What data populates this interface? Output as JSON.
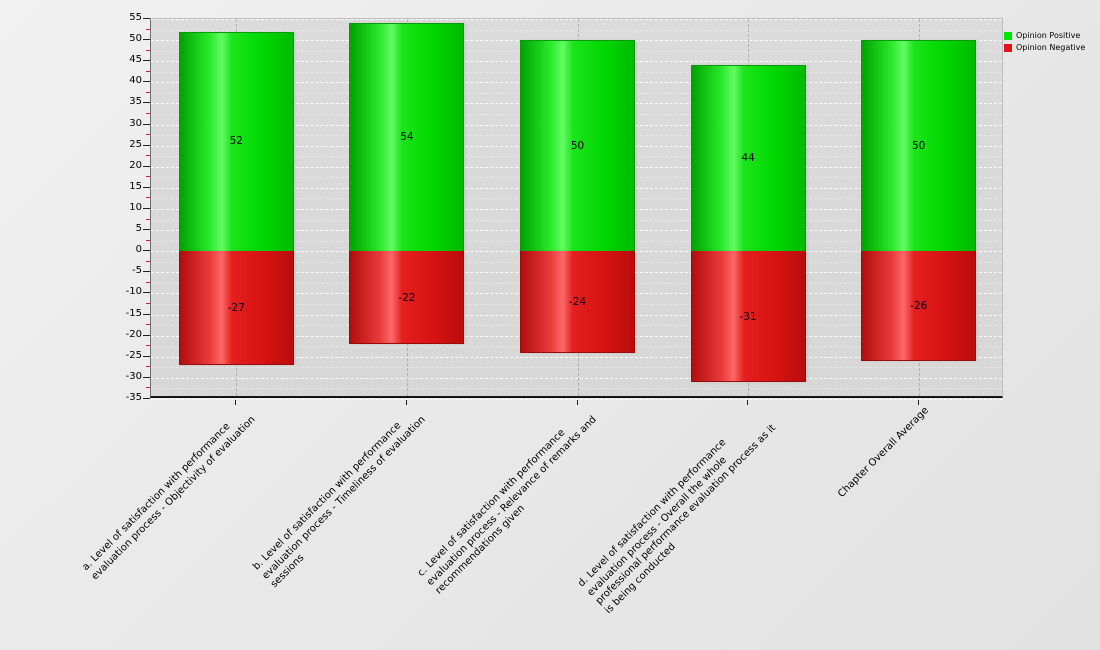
{
  "legend": {
    "position": "top-right",
    "items": [
      {
        "label": "Opinion Positive",
        "color": "#00e400"
      },
      {
        "label": "Opinion Negative",
        "color": "#e81414"
      }
    ]
  },
  "chart_data": {
    "type": "bar",
    "stacked": true,
    "title": "",
    "xlabel": "",
    "ylabel": "",
    "ylim": [
      -35,
      55
    ],
    "y_tick_step": 5,
    "y_minor_tick_step": 2.5,
    "grid": true,
    "legend_position": "top-right",
    "categories": [
      [
        "a. Level of satisfaction with performance",
        "evaluation process - Objectivity of evaluation"
      ],
      [
        "b. Level of satisfaction with performance",
        "evaluation process - Timeliness of evaluation",
        "sessions"
      ],
      [
        "c. Level of satisfaction with performance",
        "evaluation process - Relevance of remarks and",
        "recommendations given"
      ],
      [
        "d. Level of satisfaction with performance",
        "evaluation process - Overall the whole",
        "professional performance evaluation process as it",
        "is being conducted"
      ],
      [
        "Chapter Overall Average"
      ]
    ],
    "series": [
      {
        "name": "Opinion Positive",
        "color": "#00e400",
        "values": [
          52,
          54,
          50,
          44,
          50
        ]
      },
      {
        "name": "Opinion Negative",
        "color": "#e81414",
        "values": [
          -27,
          -22,
          -24,
          -31,
          -26
        ]
      }
    ]
  }
}
